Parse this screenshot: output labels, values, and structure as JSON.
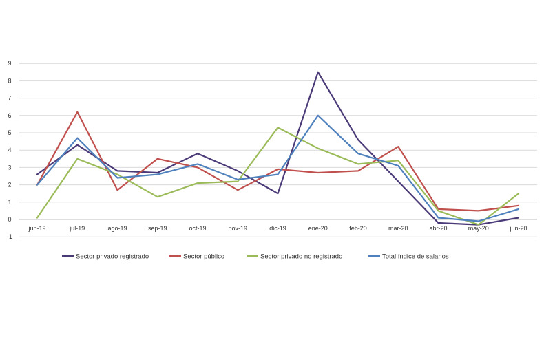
{
  "chart_data": {
    "type": "line",
    "title": "",
    "xlabel": "",
    "ylabel": "",
    "ylim": [
      -1,
      9
    ],
    "yticks": [
      -1,
      0,
      1,
      2,
      3,
      4,
      5,
      6,
      7,
      8,
      9
    ],
    "grid": true,
    "legend_position": "bottom",
    "categories": [
      "jun-19",
      "jul-19",
      "ago-19",
      "sep-19",
      "oct-19",
      "nov-19",
      "dic-19",
      "ene-20",
      "feb-20",
      "mar-20",
      "abr-20",
      "may-20",
      "jun-20"
    ],
    "series": [
      {
        "name": "Sector privado registrado",
        "color": "#4b3a78",
        "values": [
          2.6,
          4.3,
          2.8,
          2.7,
          3.8,
          2.8,
          1.5,
          8.5,
          4.6,
          2.2,
          -0.2,
          -0.3,
          0.1
        ]
      },
      {
        "name": "Sector público",
        "color": "#c0504d",
        "values": [
          2.0,
          6.2,
          1.7,
          3.5,
          3.0,
          1.7,
          2.9,
          2.7,
          2.8,
          4.2,
          0.6,
          0.5,
          0.8
        ]
      },
      {
        "name": "Sector privado no registrado",
        "color": "#9bbb59",
        "values": [
          0.1,
          3.5,
          2.6,
          1.3,
          2.1,
          2.2,
          5.3,
          4.1,
          3.2,
          3.4,
          0.5,
          -0.3,
          1.5
        ]
      },
      {
        "name": "Total índice de salarios",
        "color": "#4f81bd",
        "values": [
          2.0,
          4.7,
          2.4,
          2.6,
          3.2,
          2.3,
          2.6,
          6.0,
          3.8,
          3.1,
          0.1,
          -0.1,
          0.6
        ]
      }
    ]
  }
}
